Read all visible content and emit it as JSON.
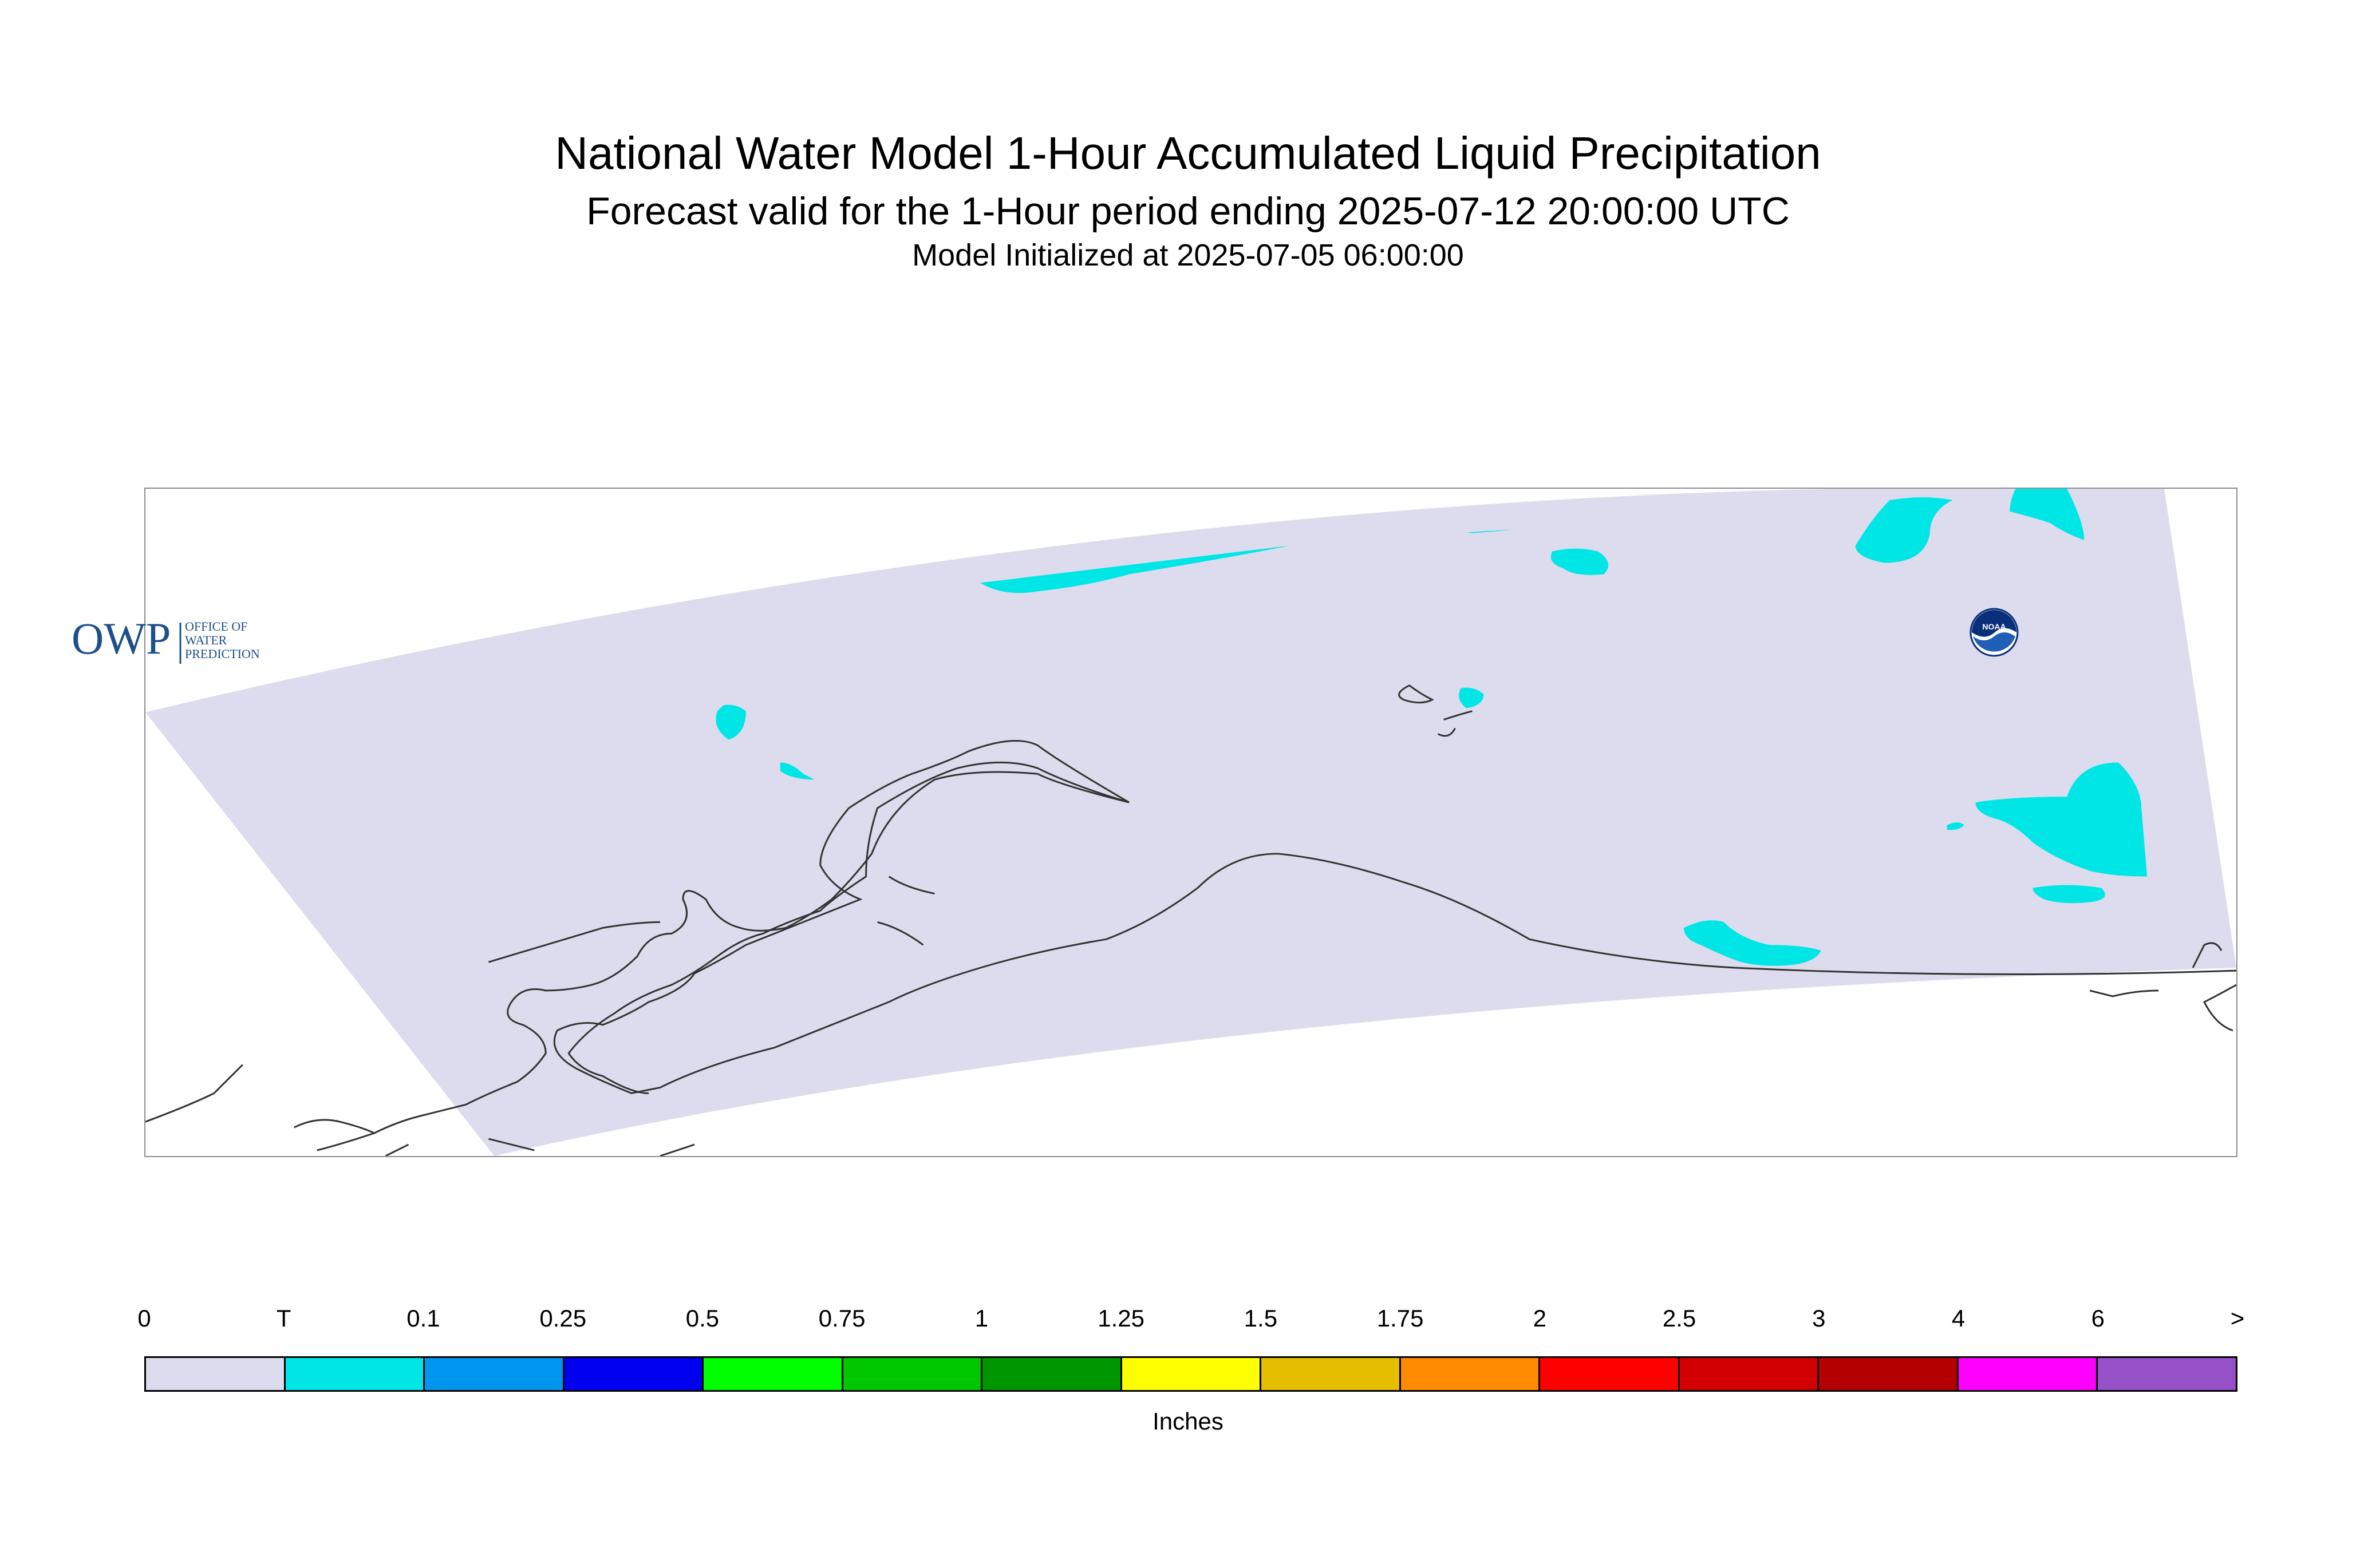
{
  "header": {
    "title": "National Water Model 1-Hour Accumulated Liquid Precipitation",
    "subtitle": "Forecast valid for the 1-Hour period ending 2025-07-12 20:00:00 UTC",
    "init_line": "Model Initialized at 2025-07-05 06:00:00"
  },
  "map": {
    "domain_fill_color": "#dcdcee",
    "trace_color": "#00e6e6",
    "coast_color": "#333333",
    "owp_logo": {
      "mark": "OWP",
      "line1": "OFFICE OF",
      "line2": "WATER",
      "line3": "PREDICTION",
      "color": "#1d4f8a"
    },
    "noaa_logo": {
      "text": "NOAA",
      "color": "#1f5fb8"
    }
  },
  "legend": {
    "units": "Inches",
    "labels": [
      "0",
      "T",
      "0.1",
      "0.25",
      "0.5",
      "0.75",
      "1",
      "1.25",
      "1.5",
      "1.75",
      "2",
      "2.5",
      "3",
      "4",
      "6",
      ">"
    ],
    "colors": [
      "#dcdcee",
      "#00e6e6",
      "#0096f0",
      "#0000f0",
      "#00ff00",
      "#00c800",
      "#009600",
      "#ffff00",
      "#e6be00",
      "#ff8c00",
      "#ff0000",
      "#d20000",
      "#b40000",
      "#ff00ff",
      "#9650c8"
    ]
  }
}
